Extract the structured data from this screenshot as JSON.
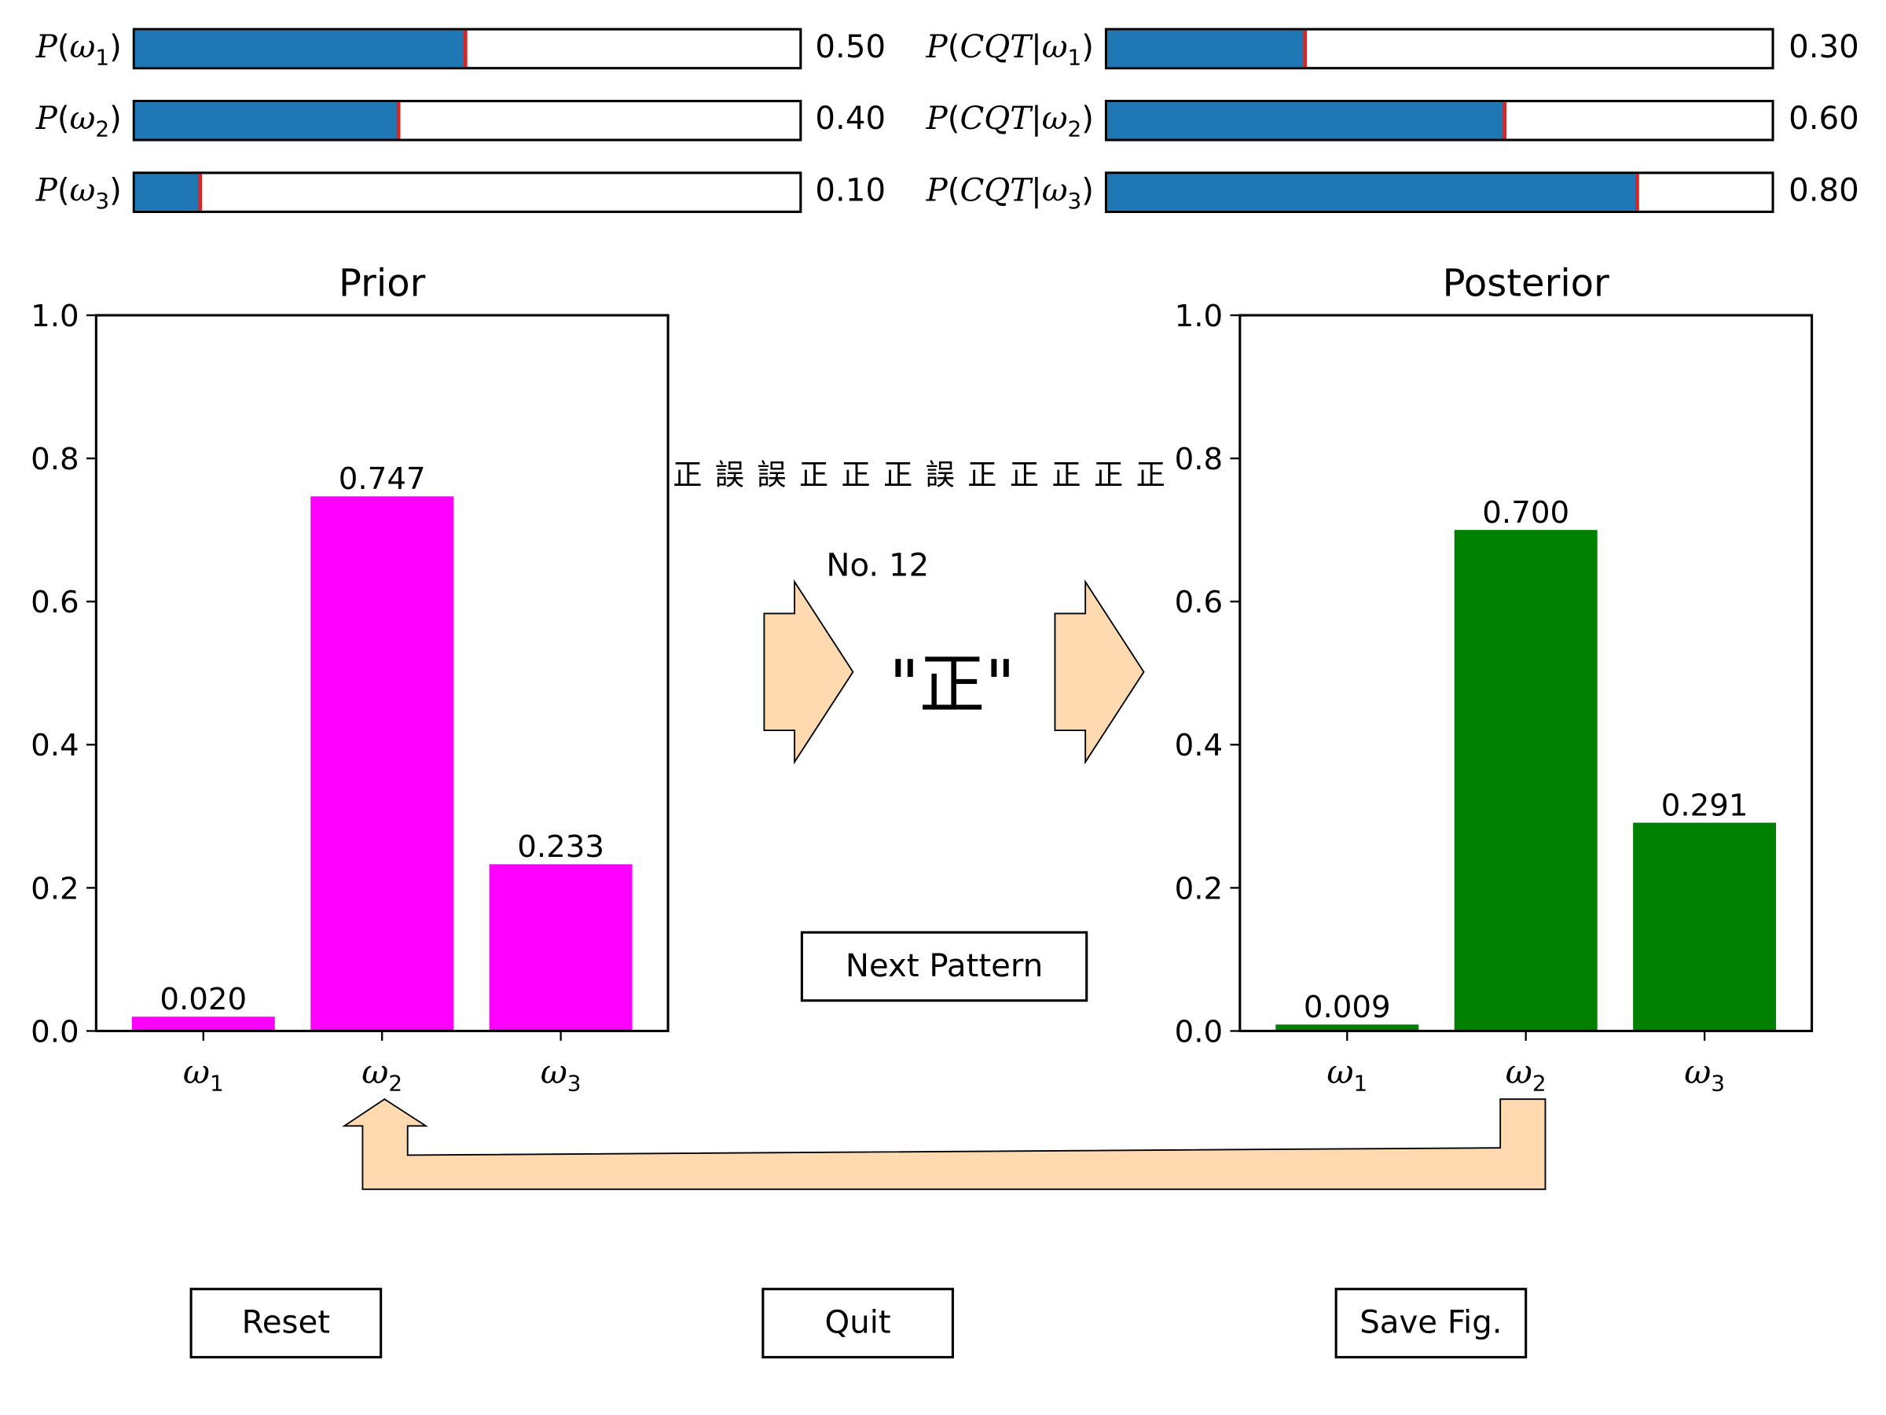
{
  "sliders_prior": [
    {
      "label_fn": "P",
      "label_sym": "ω",
      "label_sub": "1",
      "value": 0.5,
      "value_text": "0.50"
    },
    {
      "label_fn": "P",
      "label_sym": "ω",
      "label_sub": "2",
      "value": 0.4,
      "value_text": "0.40"
    },
    {
      "label_fn": "P",
      "label_sym": "ω",
      "label_sub": "3",
      "value": 0.1,
      "value_text": "0.10"
    }
  ],
  "sliders_likelihood": [
    {
      "label_fn": "P",
      "label_cond": "CQT",
      "label_sym": "ω",
      "label_sub": "1",
      "value": 0.3,
      "value_text": "0.30"
    },
    {
      "label_fn": "P",
      "label_cond": "CQT",
      "label_sym": "ω",
      "label_sub": "2",
      "value": 0.6,
      "value_text": "0.60"
    },
    {
      "label_fn": "P",
      "label_cond": "CQT",
      "label_sym": "ω",
      "label_sub": "3",
      "value": 0.8,
      "value_text": "0.80"
    }
  ],
  "chart_data": [
    {
      "type": "bar",
      "title": "Prior",
      "categories": [
        "ω1",
        "ω2",
        "ω3"
      ],
      "values": [
        0.02,
        0.747,
        0.233
      ],
      "value_labels": [
        "0.020",
        "0.747",
        "0.233"
      ],
      "ylim": [
        0,
        1.0
      ],
      "yticks": [
        "0.0",
        "0.2",
        "0.4",
        "0.6",
        "0.8",
        "1.0"
      ],
      "color": "#ff00ff"
    },
    {
      "type": "bar",
      "title": "Posterior",
      "categories": [
        "ω1",
        "ω2",
        "ω3"
      ],
      "values": [
        0.009,
        0.7,
        0.291
      ],
      "value_labels": [
        "0.009",
        "0.700",
        "0.291"
      ],
      "ylim": [
        0,
        1.0
      ],
      "yticks": [
        "0.0",
        "0.2",
        "0.4",
        "0.6",
        "0.8",
        "1.0"
      ],
      "color": "#008000"
    }
  ],
  "sequence": [
    "正",
    "誤",
    "誤",
    "正",
    "正",
    "正",
    "誤",
    "正",
    "正",
    "正",
    "正",
    "正"
  ],
  "pattern_number": "No. 12",
  "current_observation": "\"正\"",
  "buttons": {
    "next_pattern": "Next Pattern",
    "reset": "Reset",
    "quit": "Quit",
    "save_fig": "Save Fig."
  },
  "colors": {
    "slider_fill": "#1f77b4",
    "slider_marker": "#d62728",
    "arrow_fill": "#ffdab0"
  }
}
